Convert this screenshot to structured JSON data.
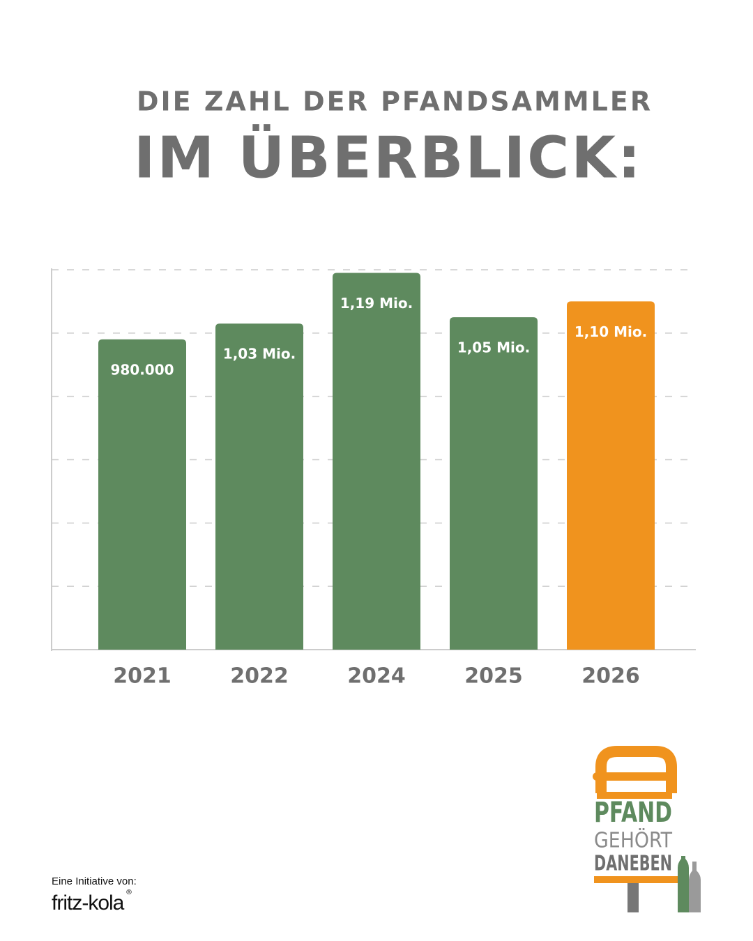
{
  "chart_data": {
    "type": "bar",
    "title": "DIE ZAHL DER PFANDSAMMLER",
    "subtitle": "IM ÜBERBLICK:",
    "categories": [
      "2021",
      "2022",
      "2024",
      "2025",
      "2026"
    ],
    "values": [
      980000,
      1030000,
      1190000,
      1050000,
      1100000
    ],
    "value_labels": [
      "980.000",
      "1,03 Mio.",
      "1,19 Mio.",
      "1,05 Mio.",
      "1,10 Mio."
    ],
    "colors": [
      "#5e8a5e",
      "#5e8a5e",
      "#5e8a5e",
      "#5e8a5e",
      "#f0931e"
    ],
    "ylim": [
      0,
      1200000
    ],
    "yticks": [
      0,
      200000,
      400000,
      600000,
      800000,
      1000000,
      1200000
    ],
    "grid": true
  },
  "footer": {
    "initiative": "Eine Initiative von:",
    "brand": "fritz-kola",
    "mark": "®"
  },
  "logo": {
    "line1": "PFAND",
    "line2": "GEHÖRT",
    "line3": "DANEBEN"
  }
}
